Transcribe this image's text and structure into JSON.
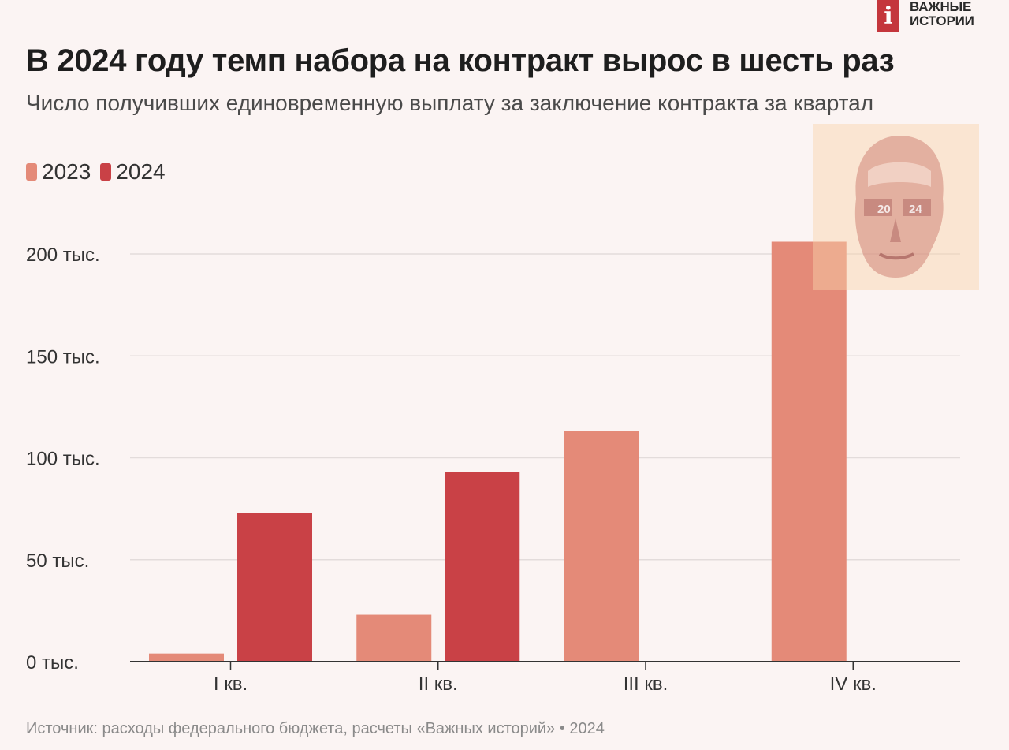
{
  "logo": {
    "line1": "ВАЖНЫЕ",
    "line2": "ИСТОРИИ",
    "mark": "i"
  },
  "title": "В 2024 году темп набора на контракт вырос в шесть раз",
  "subtitle": "Число получивших единовременную выплату за заключение контракта за квартал",
  "source": "Источник: расходы федерального бюджета, расчеты «Важных историй» • 2024",
  "colors": {
    "2023": "#e48a78",
    "2024": "#c94146",
    "grid": "#e3dcdb",
    "axis": "#333333"
  },
  "watermark": {
    "label1": "20",
    "label2": "24"
  },
  "chart_data": {
    "type": "bar",
    "categories": [
      "I кв.",
      "II кв.",
      "III кв.",
      "IV кв."
    ],
    "series": [
      {
        "name": "2023",
        "values": [
          4000,
          23000,
          113000,
          206000
        ]
      },
      {
        "name": "2024",
        "values": [
          73000,
          93000,
          null,
          null
        ]
      }
    ],
    "yticks": [
      0,
      50000,
      100000,
      150000,
      200000
    ],
    "ytick_labels": [
      "0 тыс.",
      "50 тыс.",
      "100 тыс.",
      "150 тыс.",
      "200 тыс."
    ],
    "ylim": [
      0,
      230000
    ],
    "title": "В 2024 году темп набора на контракт вырос в шесть раз",
    "xlabel": "",
    "ylabel": ""
  }
}
